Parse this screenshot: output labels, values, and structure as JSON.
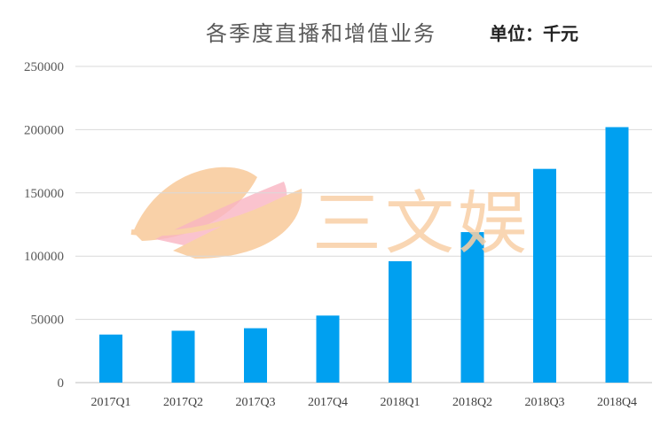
{
  "chart_data": {
    "type": "bar",
    "title": "各季度直播和增值业务",
    "unit_label": "单位：千元",
    "categories": [
      "2017Q1",
      "2017Q2",
      "2017Q3",
      "2017Q4",
      "2018Q1",
      "2018Q2",
      "2018Q3",
      "2018Q4"
    ],
    "series": [
      {
        "values": [
          38000,
          41000,
          43000,
          53000,
          96000,
          119000,
          169000,
          202000
        ]
      }
    ],
    "ylim": [
      0,
      250000
    ],
    "yticks": [
      0,
      50000,
      100000,
      150000,
      200000,
      250000
    ],
    "grid": true,
    "bar_color": "#00a0f0"
  },
  "watermark": {
    "text": "三文娱"
  }
}
